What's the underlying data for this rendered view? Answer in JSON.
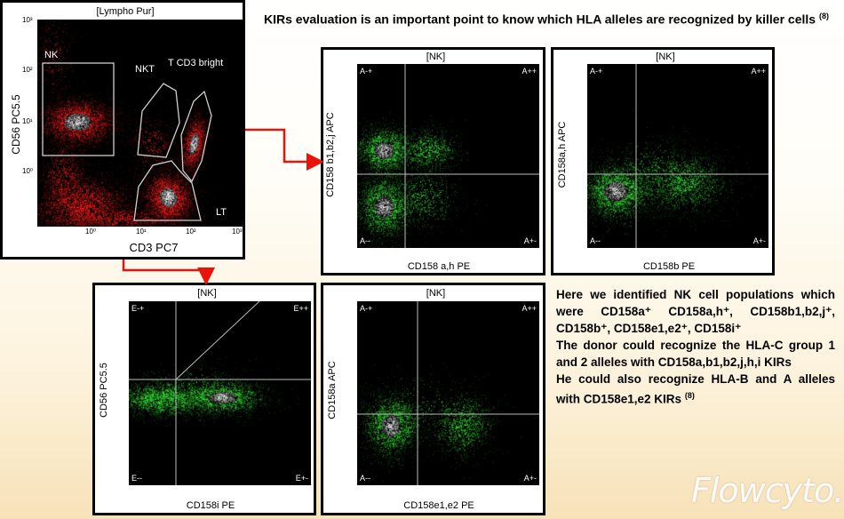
{
  "header": {
    "text": "KIRs evaluation is an important point to know which HLA alleles are recognized by killer cells",
    "ref": "(8)"
  },
  "main_plot": {
    "title": "[Lympho Pur]",
    "ylabel": "CD56 PC5.5",
    "xlabel": "CD3 PC7",
    "gates": [
      "NK",
      "NKT",
      "T CD3 bright",
      "LT"
    ],
    "ticks": [
      "10³",
      "10²",
      "10¹",
      "10⁰",
      "10⁰",
      "10¹",
      "10²",
      "10³"
    ]
  },
  "plot_b1": {
    "title": "[NK]",
    "ylabel": "CD158 b1,b2,j APC",
    "xlabel": "CD158 a,h PE",
    "quadrants": [
      "A-+",
      "A++",
      "A--",
      "A+-"
    ]
  },
  "plot_b": {
    "title": "[NK]",
    "ylabel": "CD158a,h APC",
    "xlabel": "CD158b PE",
    "quadrants": [
      "A-+",
      "A++",
      "A--",
      "A+-"
    ]
  },
  "plot_i": {
    "title": "[NK]",
    "ylabel": "CD56 PC5.5",
    "xlabel": "CD158i PE",
    "quadrants": [
      "E-+",
      "E++",
      "E--",
      "E+-"
    ]
  },
  "plot_e": {
    "title": "[NK]",
    "ylabel": "CD158a APC",
    "xlabel": "CD158e1,e2 PE",
    "quadrants": [
      "A-+",
      "A++",
      "A--",
      "A+-"
    ]
  },
  "summary": {
    "p1": "Here we identified NK cell populations which were CD158a⁺ CD158a,h⁺, CD158b1,b2,j⁺, CD158b⁺, CD158e1,e2⁺, CD158i⁺",
    "p2": "The donor could recognize the HLA-C group 1 and 2 alleles with CD158a,b1,b2,j,h,i KIRs",
    "p3": "He could also recognize HLA-B and A alleles with CD158e1,e2 KIRs",
    "ref": "(8)"
  },
  "watermark": "Flowcyto.cn",
  "colors": {
    "main_dots": "#ff2020",
    "nk_dots": "#3cff3c",
    "arrow": "#e8140c",
    "gate_line": "#cfcfcf"
  }
}
